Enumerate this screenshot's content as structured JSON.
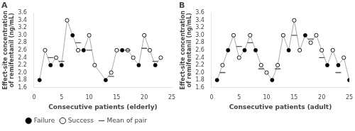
{
  "chart_data": [
    {
      "type": "scatter",
      "title": "A",
      "x_label": "Consecutive patients (elderly)",
      "y_label": "Effect-site concentration\nof remifentanil (ng/mL)",
      "xlim": [
        0,
        25
      ],
      "xticks": [
        0,
        5,
        10,
        15,
        20,
        25
      ],
      "ylim": [
        1.6,
        3.6
      ],
      "yticks": [
        1.6,
        1.8,
        {
          "value": 2.0,
          "label": "2.0"
        },
        2.2,
        2.4,
        2.6,
        2.8,
        {
          "value": 3.0,
          "label": "3.0"
        },
        3.2,
        3.4,
        3.6
      ],
      "grid": false,
      "legend": "bottom",
      "series": [
        {
          "type": "line",
          "line_style": "solid",
          "color": "#aaaaaa",
          "x": [
            1,
            2,
            3,
            4,
            5,
            6,
            7,
            8,
            9,
            10,
            11,
            13,
            14,
            15,
            16,
            17,
            18,
            19,
            20,
            21,
            22,
            23
          ],
          "values": [
            1.8,
            2.6,
            2.2,
            2.4,
            2.2,
            3.4,
            3.0,
            2.6,
            2.6,
            3.0,
            2.2,
            1.8,
            2.0,
            2.6,
            2.6,
            2.6,
            2.4,
            2.2,
            3.0,
            2.6,
            2.2,
            2.4
          ]
        },
        {
          "name": "Failure",
          "type": "scatter",
          "marker": "circle",
          "color": "#000000",
          "x": [
            1,
            3,
            5,
            7,
            9,
            13,
            16,
            19,
            22
          ],
          "values": [
            1.8,
            2.2,
            2.2,
            3.0,
            2.6,
            1.8,
            2.6,
            2.2,
            2.2
          ]
        },
        {
          "name": "Success",
          "type": "scatter",
          "marker": "open_circle",
          "color": "#000000",
          "x": [
            2,
            4,
            6,
            8,
            10,
            11,
            14,
            15,
            17,
            18,
            20,
            21,
            23
          ],
          "values": [
            2.6,
            2.4,
            3.4,
            2.6,
            3.0,
            2.2,
            2.0,
            2.6,
            2.6,
            2.4,
            3.0,
            2.6,
            2.4
          ]
        },
        {
          "name": "Mean of pair",
          "type": "scatter",
          "marker": "dash",
          "color": "#555555",
          "x": [
            3,
            5,
            8,
            10,
            14,
            17,
            20,
            22
          ],
          "values": [
            2.4,
            2.3,
            2.8,
            2.6,
            1.9,
            2.6,
            2.65,
            2.3
          ]
        }
      ]
    },
    {
      "type": "scatter",
      "title": "B",
      "x_label": "Consecutive patients (adult)",
      "y_label": "Effect-site concentration\nof remifentanil (ng/mL)",
      "xlim": [
        0,
        25
      ],
      "xticks": [
        0,
        5,
        10,
        15,
        20,
        25
      ],
      "ylim": [
        1.6,
        3.6
      ],
      "yticks": [
        1.6,
        1.8,
        {
          "value": 2.0,
          "label": "2.0"
        },
        2.2,
        2.4,
        2.6,
        2.8,
        {
          "value": 3.0,
          "label": "3.0"
        },
        3.2,
        3.4,
        3.6
      ],
      "grid": false,
      "series": [
        {
          "type": "line",
          "line_style": "solid",
          "color": "#aaaaaa",
          "x": [
            1,
            2,
            3,
            4,
            5,
            6,
            7,
            8,
            9,
            10,
            11,
            12,
            13,
            14,
            15,
            16,
            17,
            18,
            19,
            20,
            21,
            22,
            23,
            24,
            25
          ],
          "values": [
            1.8,
            2.2,
            2.6,
            3.0,
            2.4,
            2.6,
            3.0,
            2.6,
            2.2,
            2.0,
            1.8,
            2.2,
            3.0,
            2.6,
            3.4,
            2.6,
            3.0,
            2.8,
            3.0,
            2.6,
            2.2,
            2.6,
            2.2,
            2.4,
            1.8
          ]
        },
        {
          "name": "Failure",
          "type": "scatter",
          "marker": "circle",
          "color": "#000000",
          "x": [
            1,
            3,
            6,
            8,
            11,
            14,
            17,
            21,
            23,
            25
          ],
          "values": [
            1.8,
            2.6,
            2.6,
            2.6,
            1.8,
            2.6,
            3.0,
            2.2,
            2.2,
            1.8
          ]
        },
        {
          "name": "Success",
          "type": "scatter",
          "marker": "open_circle",
          "color": "#000000",
          "x": [
            2,
            4,
            5,
            7,
            9,
            10,
            12,
            13,
            15,
            16,
            18,
            19,
            20,
            22,
            24
          ],
          "values": [
            2.2,
            3.0,
            2.4,
            3.0,
            2.2,
            2.0,
            2.2,
            3.0,
            3.4,
            2.6,
            2.8,
            3.0,
            2.6,
            2.6,
            2.4
          ]
        },
        {
          "name": "Mean of pair",
          "type": "scatter",
          "marker": "dash",
          "color": "#555555",
          "x": [
            2,
            5,
            7,
            9,
            12,
            15,
            18,
            20,
            23
          ],
          "values": [
            2.0,
            2.7,
            2.8,
            2.1,
            2.1,
            3.0,
            2.9,
            2.4,
            2.0
          ]
        }
      ]
    }
  ]
}
